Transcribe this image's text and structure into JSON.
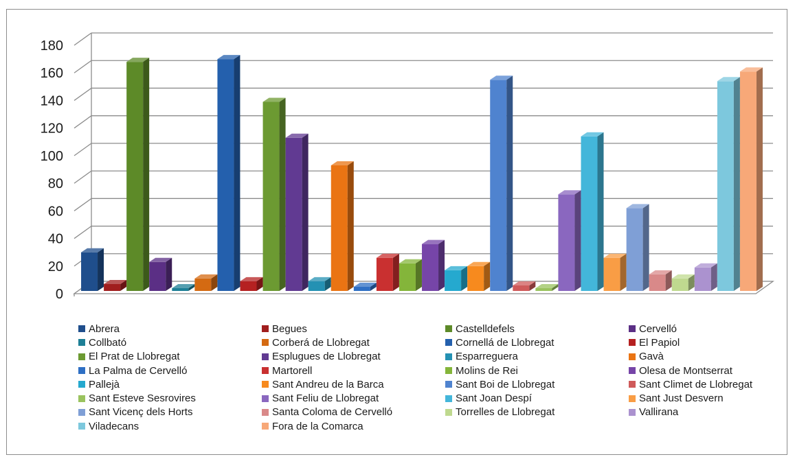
{
  "chart_data": {
    "type": "bar",
    "title": "",
    "xlabel": "",
    "ylabel": "",
    "ylim": [
      0,
      180
    ],
    "yticks": [
      0,
      20,
      40,
      60,
      80,
      100,
      120,
      140,
      160,
      180
    ],
    "grid": true,
    "legend_position": "bottom",
    "series": [
      {
        "name": "Abrera",
        "value": 28,
        "color": "#1f4e8c"
      },
      {
        "name": "Begues",
        "value": 5,
        "color": "#a01e1e"
      },
      {
        "name": "Castelldefels",
        "value": 166,
        "color": "#5d8a28"
      },
      {
        "name": "Cervelló",
        "value": 21,
        "color": "#5b2f85"
      },
      {
        "name": "Collbató",
        "value": 2,
        "color": "#1d7f96"
      },
      {
        "name": "Corberá de Llobregat",
        "value": 9,
        "color": "#d46a12"
      },
      {
        "name": "Cornellá de Llobregat",
        "value": 168,
        "color": "#2460ad"
      },
      {
        "name": "El Papiol",
        "value": 7,
        "color": "#b52121"
      },
      {
        "name": "El Prat de Llobregat",
        "value": 137,
        "color": "#6c9a32"
      },
      {
        "name": "Esplugues de Llobregat",
        "value": 111,
        "color": "#613a92"
      },
      {
        "name": "Esparreguera",
        "value": 7,
        "color": "#2491b3"
      },
      {
        "name": "Gavà",
        "value": 91,
        "color": "#ea7413"
      },
      {
        "name": "La Palma de Cervelló",
        "value": 3,
        "color": "#2e6fc4"
      },
      {
        "name": "Martorell",
        "value": 24,
        "color": "#c93030"
      },
      {
        "name": "Molins de Rei",
        "value": 20,
        "color": "#84b53a"
      },
      {
        "name": "Olesa de Montserrat",
        "value": 34,
        "color": "#7645a8"
      },
      {
        "name": "Pallejà",
        "value": 15,
        "color": "#25a9cf"
      },
      {
        "name": "Sant Andreu de la Barca",
        "value": 18,
        "color": "#f78a1e"
      },
      {
        "name": "Sant Boi de Llobregat",
        "value": 153,
        "color": "#4f83cf"
      },
      {
        "name": "Sant Climet de Llobregat",
        "value": 4,
        "color": "#cf5a5a"
      },
      {
        "name": "Sant Esteve Sesrovires",
        "value": 2,
        "color": "#9ac35e"
      },
      {
        "name": "Sant Feliu de Llobregat",
        "value": 70,
        "color": "#8a67bf"
      },
      {
        "name": "Sant Joan Despí",
        "value": 112,
        "color": "#43b6da"
      },
      {
        "name": "Sant Just Desvern",
        "value": 24,
        "color": "#f99d45"
      },
      {
        "name": "Sant Vicenç dels Horts",
        "value": 60,
        "color": "#7f9fd6"
      },
      {
        "name": "Santa Coloma de Cervelló",
        "value": 12,
        "color": "#d98989"
      },
      {
        "name": "Torrelles de Llobregat",
        "value": 9,
        "color": "#bfd98f"
      },
      {
        "name": "Vallirana",
        "value": 17,
        "color": "#ab92cf"
      },
      {
        "name": "Viladecans",
        "value": 152,
        "color": "#7dc8dd"
      },
      {
        "name": "Fora de la Comarca",
        "value": 159,
        "color": "#f7a878"
      }
    ]
  }
}
